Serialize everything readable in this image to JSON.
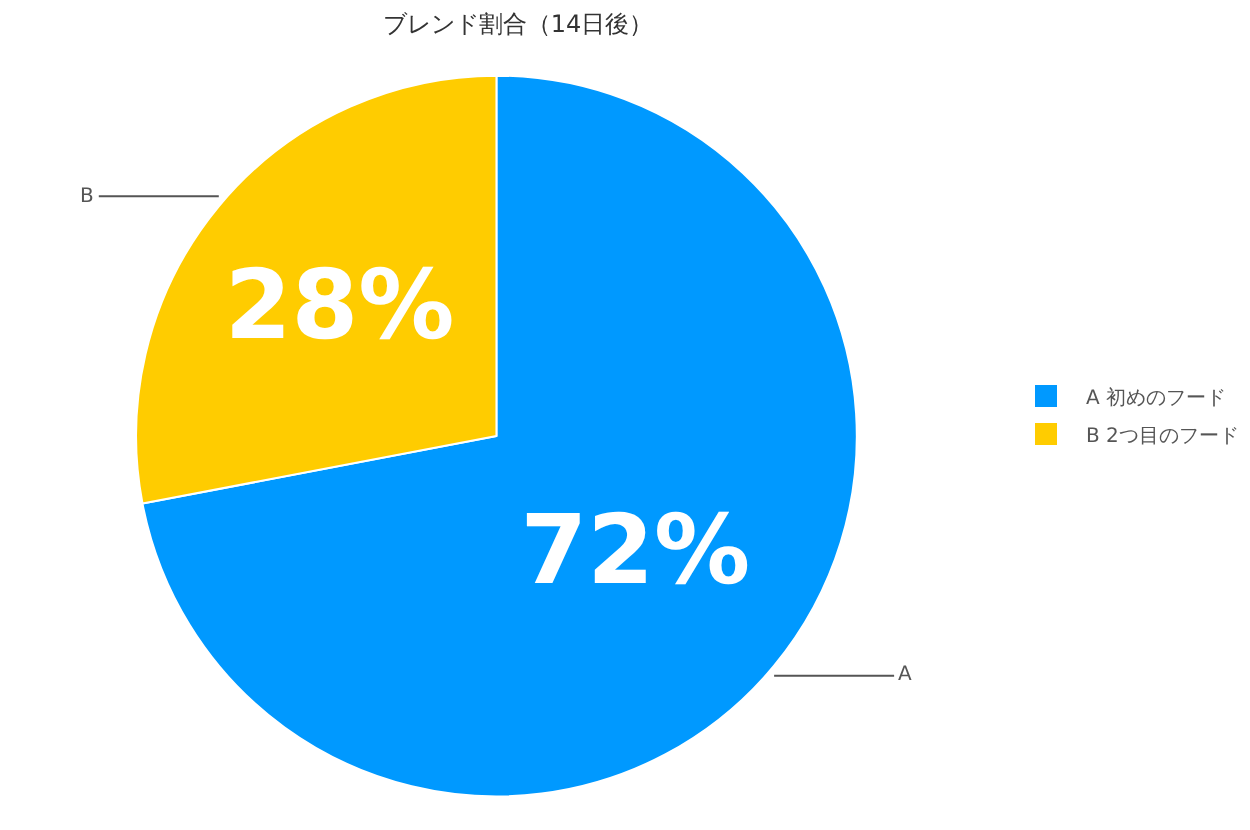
{
  "chart_data": {
    "type": "pie",
    "title": "ブレンド割合（14日後）",
    "categories": [
      "A 初めのフード",
      "B 2つ目のフード"
    ],
    "values": [
      72,
      28
    ],
    "colors": [
      "#0099ff",
      "#ffcc00"
    ],
    "value_labels": [
      "72%",
      "28%"
    ],
    "annotations": [
      "A",
      "B"
    ],
    "legend": "right"
  }
}
